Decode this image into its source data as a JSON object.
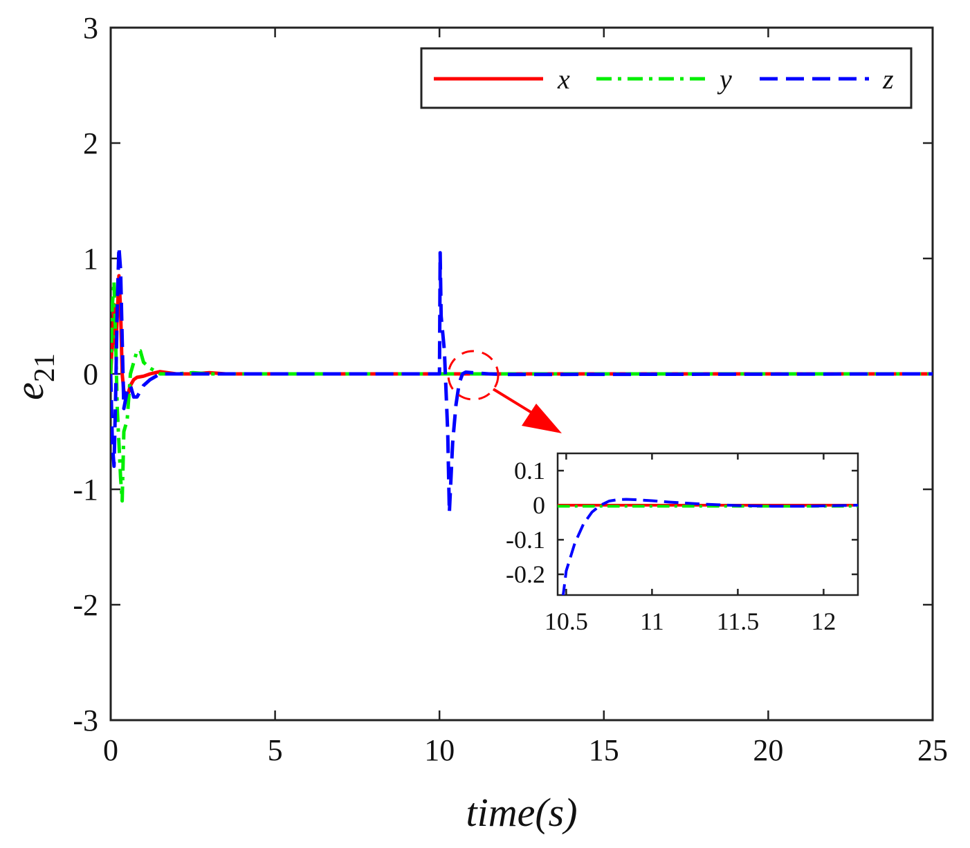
{
  "chart_data": [
    {
      "id": "main",
      "type": "line",
      "xlabel": "time(s)",
      "ylabel_base": "e",
      "ylabel_sub": "21",
      "xlim": [
        0,
        25
      ],
      "ylim": [
        -3,
        3
      ],
      "xticks": [
        0,
        5,
        10,
        15,
        20,
        25
      ],
      "xtick_labels": [
        "0",
        "5",
        "10",
        "15",
        "20",
        "25"
      ],
      "yticks": [
        -3,
        -2,
        -1,
        0,
        1,
        2,
        3
      ],
      "ytick_labels": [
        "-3",
        "-2",
        "-1",
        "0",
        "1",
        "2",
        "3"
      ],
      "legend_position": "top-right",
      "series": [
        {
          "name": "x",
          "color": "#ff0000",
          "style": "solid",
          "x": [
            0,
            0.05,
            0.1,
            0.15,
            0.2,
            0.25,
            0.3,
            0.35,
            0.4,
            0.5,
            0.6,
            0.7,
            0.8,
            1.0,
            1.2,
            1.5,
            2.0,
            2.5,
            3.0,
            3.5,
            4.0,
            10.0,
            25.0
          ],
          "y": [
            0,
            0.3,
            0.6,
            0.2,
            0.5,
            0.85,
            0.55,
            0.0,
            -0.15,
            -0.2,
            -0.1,
            -0.05,
            -0.03,
            -0.02,
            0.0,
            0.02,
            0.0,
            0.0,
            0.01,
            0.0,
            0.0,
            0.0,
            0.0
          ]
        },
        {
          "name": "y",
          "color": "#00ee00",
          "style": "dashdot",
          "x": [
            0,
            0.05,
            0.1,
            0.15,
            0.2,
            0.25,
            0.3,
            0.35,
            0.4,
            0.5,
            0.6,
            0.7,
            0.8,
            0.9,
            1.0,
            1.2,
            1.5,
            2.0,
            2.5,
            3.0,
            10.0,
            25.0
          ],
          "y": [
            0,
            0.6,
            0.8,
            0.3,
            -0.3,
            -0.6,
            -0.9,
            -1.1,
            -0.5,
            -0.4,
            0.0,
            0.1,
            0.2,
            0.2,
            0.1,
            0.05,
            0.0,
            0.0,
            0.01,
            0.0,
            0.0,
            0.0
          ]
        },
        {
          "name": "z",
          "color": "#0000ff",
          "style": "dashed",
          "x": [
            0,
            0.05,
            0.1,
            0.15,
            0.2,
            0.25,
            0.3,
            0.35,
            0.4,
            0.5,
            0.6,
            0.7,
            0.8,
            0.9,
            1.0,
            1.2,
            1.5,
            2.0,
            10.0,
            10.02,
            10.05,
            10.15,
            10.25,
            10.3,
            10.4,
            10.5,
            10.6,
            10.7,
            10.8,
            11.0,
            11.5,
            12.0,
            25.0
          ],
          "y": [
            0,
            -0.6,
            -0.8,
            -0.2,
            0.6,
            1.1,
            0.9,
            0.3,
            -0.3,
            -0.15,
            -0.1,
            -0.2,
            -0.2,
            -0.15,
            -0.1,
            -0.05,
            0.0,
            0.0,
            0.0,
            1.05,
            0.5,
            0.2,
            -0.5,
            -1.2,
            -0.6,
            -0.27,
            -0.08,
            0.0,
            0.015,
            0.01,
            0.0,
            -0.005,
            0.0
          ]
        }
      ],
      "annotation": "zoom circle around (11, 0) with arrow to inset"
    },
    {
      "id": "inset",
      "type": "line",
      "xlim": [
        10.45,
        12.2
      ],
      "ylim": [
        -0.26,
        0.15
      ],
      "xticks": [
        10.5,
        11,
        11.5,
        12
      ],
      "xtick_labels": [
        "10.5",
        "11",
        "11.5",
        "12"
      ],
      "yticks": [
        0.1,
        0,
        -0.1,
        -0.2
      ],
      "ytick_labels": [
        "0.1",
        "0",
        "-0.1",
        "-0.2"
      ],
      "series": [
        {
          "name": "x",
          "color": "#ff0000",
          "style": "solid",
          "x": [
            10.45,
            12.2
          ],
          "y": [
            0,
            0
          ]
        },
        {
          "name": "y",
          "color": "#00ee00",
          "style": "dashdot",
          "x": [
            10.45,
            12.2
          ],
          "y": [
            -0.003,
            -0.003
          ]
        },
        {
          "name": "z",
          "color": "#0000ff",
          "style": "dashed",
          "x": [
            10.48,
            10.5,
            10.55,
            10.6,
            10.65,
            10.7,
            10.75,
            10.8,
            10.85,
            10.9,
            11.0,
            11.1,
            11.2,
            11.3,
            11.4,
            11.5,
            11.6,
            11.7,
            11.8,
            11.9,
            12.0,
            12.1,
            12.2
          ],
          "y": [
            -0.27,
            -0.19,
            -0.11,
            -0.055,
            -0.02,
            0.0,
            0.012,
            0.016,
            0.017,
            0.016,
            0.013,
            0.009,
            0.006,
            0.003,
            0.001,
            -0.001,
            -0.002,
            -0.003,
            -0.003,
            -0.003,
            -0.002,
            -0.001,
            0.0
          ]
        }
      ]
    }
  ]
}
